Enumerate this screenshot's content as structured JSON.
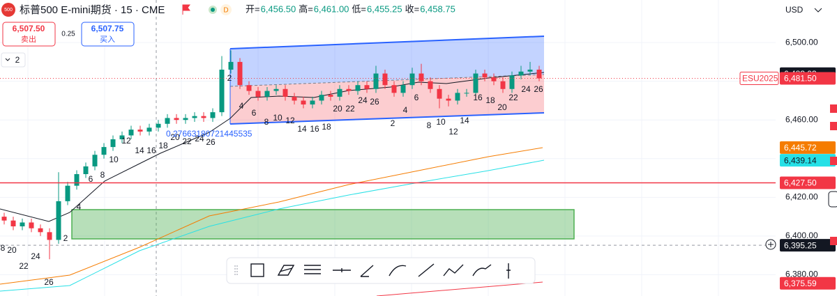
{
  "header": {
    "symbol_icon": "500",
    "title": "标普500 E-mini期货 · 15 · CME",
    "flag_d": "D",
    "ohlc": [
      {
        "label": "开=",
        "value": "6,456.50"
      },
      {
        "label": "高=",
        "value": "6,461.00"
      },
      {
        "label": "低=",
        "value": "6,455.25"
      },
      {
        "label": "收=",
        "value": "6,458.75"
      }
    ]
  },
  "trade": {
    "sell_price": "6,507.50",
    "sell_label": "卖出",
    "spread": "0.25",
    "buy_price": "6,507.75",
    "buy_label": "买入"
  },
  "layers_count": "2",
  "currency": "USD",
  "chart_data": {
    "type": "candlestick",
    "ylim": [
      6369,
      6522
    ],
    "yticks": [
      {
        "value": 6380,
        "label": "6,380.00"
      },
      {
        "value": 6400,
        "label": "6,400.00"
      },
      {
        "value": 6420,
        "label": "6,420.00"
      },
      {
        "value": 6440,
        "label": "6,440.00"
      },
      {
        "value": 6460,
        "label": "6,460.00"
      },
      {
        "value": 6480,
        "label": "6,480.00"
      },
      {
        "value": 6500,
        "label": "6,500.00"
      }
    ],
    "grid": true,
    "up_color": "#089981",
    "down_color": "#f23645",
    "open": [
      6410,
      6408,
      6405,
      6407,
      6404,
      6402,
      6398,
      6418,
      6426,
      6432,
      6436,
      6442,
      6446,
      6450,
      6452,
      6455,
      6454,
      6456,
      6458,
      6461,
      6460,
      6461,
      6462,
      6461,
      6464,
      6486,
      6490,
      6478,
      6475,
      6472,
      6475,
      6476,
      6472,
      6470,
      6468,
      6470,
      6473,
      6472,
      6476,
      6475,
      6478,
      6476,
      6484,
      6478,
      6474,
      6478,
      6484,
      6480,
      6476,
      6471,
      6470,
      6474,
      6474,
      6484,
      6482,
      6480,
      6476,
      6483,
      6485,
      6486
    ],
    "high": [
      6412,
      6410,
      6409,
      6409,
      6406,
      6404,
      6433,
      6428,
      6434,
      6438,
      6444,
      6448,
      6452,
      6454,
      6457,
      6457,
      6458,
      6460,
      6463,
      6463,
      6463,
      6464,
      6464,
      6466,
      6493,
      6496,
      6492,
      6480,
      6477,
      6477,
      6478,
      6478,
      6474,
      6472,
      6472,
      6475,
      6475,
      6478,
      6478,
      6480,
      6480,
      6488,
      6486,
      6480,
      6480,
      6487,
      6489,
      6482,
      6478,
      6473,
      6476,
      6476,
      6486,
      6486,
      6484,
      6482,
      6485,
      6488,
      6490,
      6488
    ],
    "low": [
      6406,
      6403,
      6403,
      6402,
      6400,
      6388,
      6396,
      6416,
      6424,
      6430,
      6434,
      6440,
      6444,
      6448,
      6450,
      6452,
      6452,
      6454,
      6456,
      6458,
      6458,
      6459,
      6459,
      6459,
      6462,
      6484,
      6476,
      6473,
      6470,
      6470,
      6473,
      6470,
      6468,
      6466,
      6466,
      6468,
      6470,
      6470,
      6473,
      6473,
      6474,
      6474,
      6476,
      6472,
      6472,
      6476,
      6478,
      6474,
      6466,
      6467,
      6468,
      6472,
      6472,
      6480,
      6478,
      6474,
      6474,
      6481,
      6483,
      6480
    ],
    "close": [
      6408,
      6405,
      6407,
      6404,
      6402,
      6398,
      6418,
      6426,
      6432,
      6436,
      6442,
      6446,
      6450,
      6452,
      6455,
      6454,
      6456,
      6458,
      6461,
      6460,
      6461,
      6462,
      6461,
      6464,
      6486,
      6490,
      6478,
      6475,
      6472,
      6475,
      6476,
      6472,
      6470,
      6468,
      6470,
      6473,
      6472,
      6476,
      6475,
      6478,
      6476,
      6484,
      6478,
      6474,
      6478,
      6484,
      6480,
      6476,
      6471,
      6470,
      6474,
      6474,
      6484,
      6482,
      6480,
      6476,
      6483,
      6485,
      6486,
      6481.5
    ],
    "price_labels": [
      {
        "value": 6483.93,
        "label": "6,483.93",
        "color": "#131722"
      },
      {
        "value": 6481.5,
        "label": "6,481.50",
        "color": "#f23645",
        "line": "dotted"
      },
      {
        "value": 6445.72,
        "label": "6,445.72",
        "color": "#f57c00"
      },
      {
        "value": 6439.14,
        "label": "6,439.14",
        "color": "#26e0e6"
      },
      {
        "value": 6427.5,
        "label": "6,427.50",
        "color": "#f23645",
        "line": "solid"
      },
      {
        "value": 6395.25,
        "label": "6,395.25",
        "color": "#131722",
        "line": "dashed"
      },
      {
        "value": 6375.59,
        "label": "6,375.59",
        "color": "#f23645"
      }
    ],
    "symbol_label": "ESU2025",
    "fib_label": "0.27663180721445535",
    "annotations": [
      "8",
      "20",
      "22",
      "24",
      "26",
      "2",
      "4",
      "6",
      "8",
      "10",
      "12",
      "14",
      "16",
      "18",
      "20",
      "22",
      "24",
      "26",
      "2",
      "4",
      "6",
      "8",
      "10",
      "12",
      "14",
      "16",
      "18",
      "20",
      "22",
      "24",
      "26",
      "2",
      "4",
      "6",
      "8",
      "10",
      "12",
      "14",
      "16",
      "18",
      "20",
      "22",
      "24",
      "26"
    ]
  }
}
